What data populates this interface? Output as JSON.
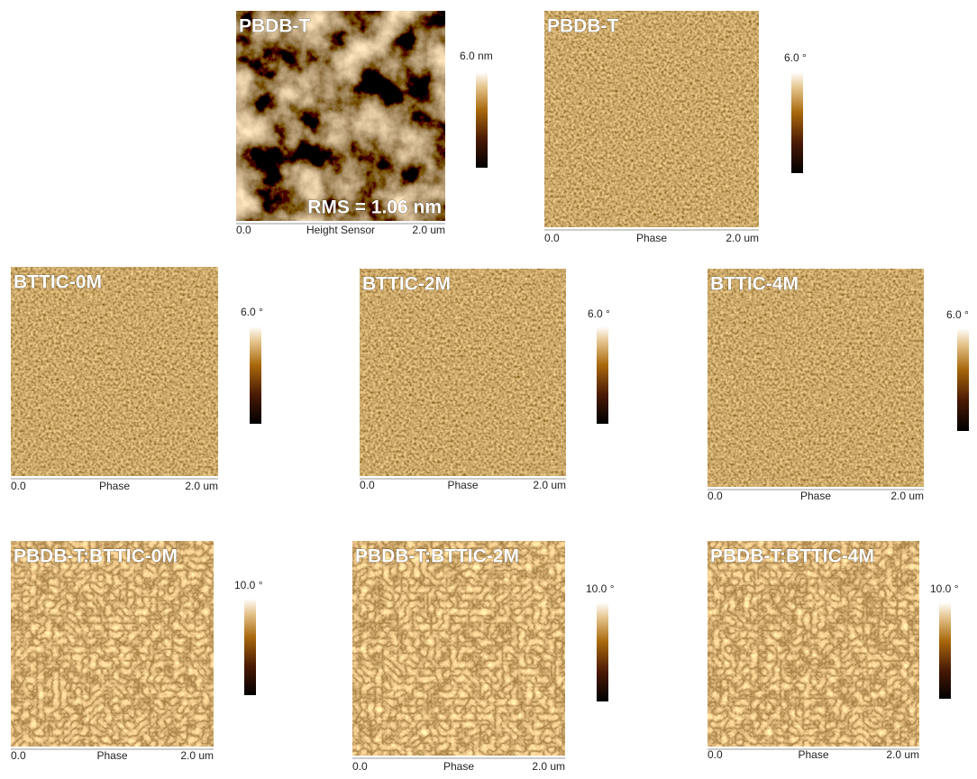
{
  "panels": [
    {
      "label": "PBDB-T",
      "scale_label": "6.0 nm",
      "x_start": "0.0",
      "channel": "Height Sensor",
      "x_end": "2.0 um",
      "annotation": "RMS = 1.06 nm"
    },
    {
      "label": "PBDB-T",
      "scale_label": "6.0 °",
      "x_start": "0.0",
      "channel": "Phase",
      "x_end": "2.0 um"
    },
    {
      "label": "BTTIC-0M",
      "scale_label": "6.0 °",
      "x_start": "0.0",
      "channel": "Phase",
      "x_end": "2.0 um"
    },
    {
      "label": "BTTIC-2M",
      "scale_label": "6.0 °",
      "x_start": "0.0",
      "channel": "Phase",
      "x_end": "2.0 um"
    },
    {
      "label": "BTTIC-4M",
      "scale_label": "6.0 °",
      "x_start": "0.0",
      "channel": "Phase",
      "x_end": "2.0 um"
    },
    {
      "label": "PBDB-T:BTTIC-0M",
      "scale_label": "10.0 °",
      "x_start": "0.0",
      "channel": "Phase",
      "x_end": "2.0 um"
    },
    {
      "label": "PBDB-T:BTTIC-2M",
      "scale_label": "10.0 °",
      "x_start": "0.0",
      "channel": "Phase",
      "x_end": "2.0 um"
    },
    {
      "label": "PBDB-T:BTTIC-4M",
      "scale_label": "10.0 °",
      "x_start": "0.0",
      "channel": "Phase",
      "x_end": "2.0 um"
    }
  ]
}
